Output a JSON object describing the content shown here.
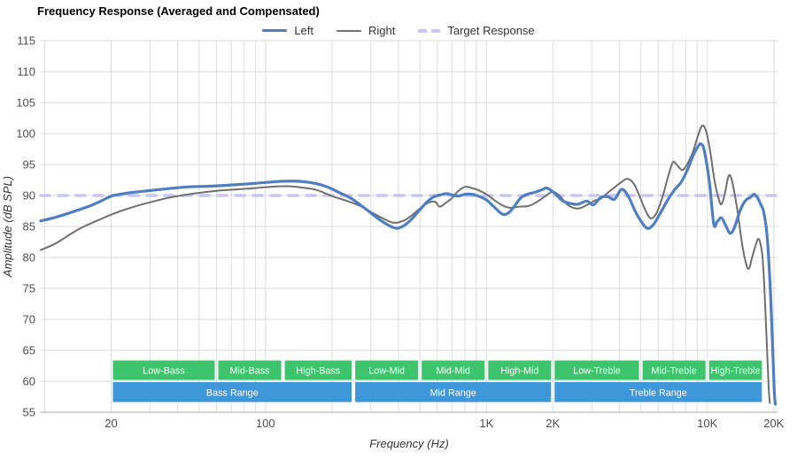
{
  "title": "Frequency Response (Averaged and Compensated)",
  "legend": {
    "items": [
      {
        "id": "left",
        "label": "Left",
        "color": "#4f7fc1",
        "style": "solid",
        "thickness": 3
      },
      {
        "id": "right",
        "label": "Right",
        "color": "#6f6f6f",
        "style": "solid",
        "thickness": 2
      },
      {
        "id": "target",
        "label": "Target Response",
        "color": "#c9c5f4",
        "style": "dashed",
        "thickness": 4
      }
    ]
  },
  "x_axis": {
    "label": "Frequency (Hz)",
    "scale": "log",
    "min_hz": 9.6,
    "max_hz": 20800,
    "ticks": [
      {
        "hz": 20,
        "label": "20"
      },
      {
        "hz": 100,
        "label": "100"
      },
      {
        "hz": 1000,
        "label": "1K"
      },
      {
        "hz": 2000,
        "label": "2K"
      },
      {
        "hz": 10000,
        "label": "10K"
      },
      {
        "hz": 20000,
        "label": "20K"
      }
    ]
  },
  "y_axis": {
    "label": "Amplitude (dB SPL)",
    "min": 55,
    "max": 115,
    "tick_step": 5
  },
  "chart_data": {
    "type": "line",
    "title": "Frequency Response (Averaged and Compensated)",
    "xlabel": "Frequency (Hz)",
    "ylabel": "Amplitude (dB SPL)",
    "xlim": [
      9.6,
      20800
    ],
    "ylim": [
      55,
      115
    ],
    "x_scale": "log",
    "grid": true,
    "legend_position": "top-center",
    "target_db": 90,
    "series": [
      {
        "name": "Left",
        "color": "#4f7fc1",
        "width": 3.2,
        "points": [
          [
            9.6,
            85.9
          ],
          [
            11,
            86.4
          ],
          [
            12.5,
            87.0
          ],
          [
            14,
            87.6
          ],
          [
            16,
            88.3
          ],
          [
            18,
            89.1
          ],
          [
            20,
            89.9
          ],
          [
            22,
            90.2
          ],
          [
            25,
            90.5
          ],
          [
            30,
            90.8
          ],
          [
            36,
            91.1
          ],
          [
            45,
            91.4
          ],
          [
            55,
            91.5
          ],
          [
            70,
            91.7
          ],
          [
            85,
            91.9
          ],
          [
            100,
            92.1
          ],
          [
            120,
            92.3
          ],
          [
            140,
            92.3
          ],
          [
            165,
            92.0
          ],
          [
            190,
            91.4
          ],
          [
            215,
            90.5
          ],
          [
            245,
            89.5
          ],
          [
            280,
            88.0
          ],
          [
            320,
            86.4
          ],
          [
            360,
            85.2
          ],
          [
            395,
            84.7
          ],
          [
            430,
            85.3
          ],
          [
            465,
            86.4
          ],
          [
            500,
            87.7
          ],
          [
            540,
            89.0
          ],
          [
            580,
            89.8
          ],
          [
            620,
            90.1
          ],
          [
            660,
            90.3
          ],
          [
            700,
            90.1
          ],
          [
            745,
            89.9
          ],
          [
            800,
            90.2
          ],
          [
            860,
            90.2
          ],
          [
            920,
            89.9
          ],
          [
            1000,
            89.3
          ],
          [
            1080,
            88.2
          ],
          [
            1180,
            87.0
          ],
          [
            1260,
            87.2
          ],
          [
            1340,
            88.3
          ],
          [
            1430,
            89.6
          ],
          [
            1530,
            90.2
          ],
          [
            1650,
            90.5
          ],
          [
            1780,
            90.9
          ],
          [
            1880,
            91.2
          ],
          [
            2050,
            90.3
          ],
          [
            2200,
            89.2
          ],
          [
            2400,
            88.7
          ],
          [
            2600,
            88.6
          ],
          [
            2850,
            89.1
          ],
          [
            3050,
            88.5
          ],
          [
            3300,
            89.7
          ],
          [
            3550,
            89.8
          ],
          [
            3800,
            89.4
          ],
          [
            4100,
            91.0
          ],
          [
            4400,
            89.8
          ],
          [
            4700,
            87.6
          ],
          [
            5000,
            85.9
          ],
          [
            5350,
            84.7
          ],
          [
            5700,
            85.3
          ],
          [
            6100,
            87.0
          ],
          [
            6600,
            89.2
          ],
          [
            7100,
            90.9
          ],
          [
            7600,
            92.1
          ],
          [
            8100,
            94.0
          ],
          [
            8600,
            96.3
          ],
          [
            9100,
            98.0
          ],
          [
            9400,
            98.3
          ],
          [
            9700,
            97.2
          ],
          [
            10200,
            92.5
          ],
          [
            10700,
            85.4
          ],
          [
            11100,
            85.8
          ],
          [
            11600,
            86.4
          ],
          [
            12100,
            85.2
          ],
          [
            12700,
            83.9
          ],
          [
            13300,
            84.9
          ],
          [
            14100,
            87.6
          ],
          [
            14900,
            89.2
          ],
          [
            15700,
            89.7
          ],
          [
            16300,
            90.2
          ],
          [
            16900,
            89.6
          ],
          [
            17500,
            88.5
          ],
          [
            18000,
            87.4
          ],
          [
            18600,
            84.0
          ],
          [
            19200,
            76.5
          ],
          [
            19700,
            67.0
          ],
          [
            20100,
            58.5
          ],
          [
            20350,
            56.3
          ]
        ]
      },
      {
        "name": "Right",
        "color": "#6f6f6f",
        "width": 2,
        "points": [
          [
            9.6,
            81.2
          ],
          [
            11,
            82.1
          ],
          [
            12,
            82.9
          ],
          [
            13,
            83.7
          ],
          [
            14.5,
            84.7
          ],
          [
            16,
            85.4
          ],
          [
            18,
            86.2
          ],
          [
            20,
            86.9
          ],
          [
            23,
            87.7
          ],
          [
            26,
            88.3
          ],
          [
            30,
            88.9
          ],
          [
            36,
            89.6
          ],
          [
            43,
            90.1
          ],
          [
            52,
            90.5
          ],
          [
            62,
            90.8
          ],
          [
            75,
            91.0
          ],
          [
            90,
            91.2
          ],
          [
            105,
            91.4
          ],
          [
            125,
            91.5
          ],
          [
            145,
            91.3
          ],
          [
            170,
            90.9
          ],
          [
            200,
            89.9
          ],
          [
            230,
            89.2
          ],
          [
            265,
            88.4
          ],
          [
            305,
            87.2
          ],
          [
            345,
            86.2
          ],
          [
            380,
            85.6
          ],
          [
            420,
            85.9
          ],
          [
            460,
            86.8
          ],
          [
            500,
            87.9
          ],
          [
            545,
            88.8
          ],
          [
            585,
            89.0
          ],
          [
            615,
            88.2
          ],
          [
            660,
            88.9
          ],
          [
            700,
            89.6
          ],
          [
            745,
            90.7
          ],
          [
            800,
            91.4
          ],
          [
            860,
            91.2
          ],
          [
            930,
            90.8
          ],
          [
            1010,
            90.1
          ],
          [
            1100,
            89.1
          ],
          [
            1200,
            88.3
          ],
          [
            1300,
            88.0
          ],
          [
            1400,
            88.2
          ],
          [
            1550,
            88.3
          ],
          [
            1700,
            89.0
          ],
          [
            1850,
            89.9
          ],
          [
            2000,
            90.6
          ],
          [
            2150,
            89.9
          ],
          [
            2350,
            88.4
          ],
          [
            2600,
            87.9
          ],
          [
            2900,
            88.6
          ],
          [
            3100,
            89.2
          ],
          [
            3300,
            89.5
          ],
          [
            3500,
            90.3
          ],
          [
            3800,
            91.3
          ],
          [
            4100,
            92.2
          ],
          [
            4350,
            92.7
          ],
          [
            4650,
            91.9
          ],
          [
            4950,
            89.8
          ],
          [
            5250,
            87.6
          ],
          [
            5550,
            86.3
          ],
          [
            5900,
            87.2
          ],
          [
            6300,
            90.0
          ],
          [
            6700,
            93.5
          ],
          [
            7000,
            95.4
          ],
          [
            7300,
            94.9
          ],
          [
            7700,
            94.1
          ],
          [
            8100,
            95.0
          ],
          [
            8600,
            97.0
          ],
          [
            9100,
            99.8
          ],
          [
            9500,
            101.3
          ],
          [
            9900,
            100.3
          ],
          [
            10300,
            97.2
          ],
          [
            10800,
            92.3
          ],
          [
            11300,
            89.3
          ],
          [
            11600,
            88.6
          ],
          [
            12000,
            90.2
          ],
          [
            12400,
            92.8
          ],
          [
            12700,
            93.2
          ],
          [
            13100,
            91.5
          ],
          [
            13700,
            87.5
          ],
          [
            14400,
            82.0
          ],
          [
            15100,
            78.6
          ],
          [
            15500,
            78.3
          ],
          [
            15900,
            79.8
          ],
          [
            16500,
            81.8
          ],
          [
            17000,
            83.0
          ],
          [
            17400,
            82.2
          ],
          [
            17800,
            80.0
          ],
          [
            18200,
            74.0
          ],
          [
            18700,
            64.0
          ],
          [
            19000,
            58.5
          ],
          [
            19200,
            56.5
          ]
        ]
      },
      {
        "name": "Target Response",
        "color": "#c9c5f4",
        "width": 3.5,
        "dash": "10 10",
        "points": [
          [
            9.6,
            90
          ],
          [
            20800,
            90
          ]
        ]
      }
    ]
  },
  "bands": {
    "sub_color": "#3ec46d",
    "main_color": "#3d97d8",
    "label_color": "#ffffff",
    "sub_ranges": [
      {
        "label": "Low-Bass",
        "from_hz": 20,
        "to_hz": 60
      },
      {
        "label": "Mid-Bass",
        "from_hz": 60,
        "to_hz": 120
      },
      {
        "label": "High-Bass",
        "from_hz": 120,
        "to_hz": 250
      },
      {
        "label": "Low-Mid",
        "from_hz": 250,
        "to_hz": 500
      },
      {
        "label": "Mid-Mid",
        "from_hz": 500,
        "to_hz": 1000
      },
      {
        "label": "High-Mid",
        "from_hz": 1000,
        "to_hz": 2000
      },
      {
        "label": "Low-Treble",
        "from_hz": 2000,
        "to_hz": 5000
      },
      {
        "label": "Mid-Treble",
        "from_hz": 5000,
        "to_hz": 10000
      },
      {
        "label": "High-Treble",
        "from_hz": 10000,
        "to_hz": 18000
      }
    ],
    "main_ranges": [
      {
        "label": "Bass Range",
        "from_hz": 20,
        "to_hz": 250
      },
      {
        "label": "Mid Range",
        "from_hz": 250,
        "to_hz": 2000
      },
      {
        "label": "Treble Range",
        "from_hz": 2000,
        "to_hz": 18000
      }
    ]
  }
}
